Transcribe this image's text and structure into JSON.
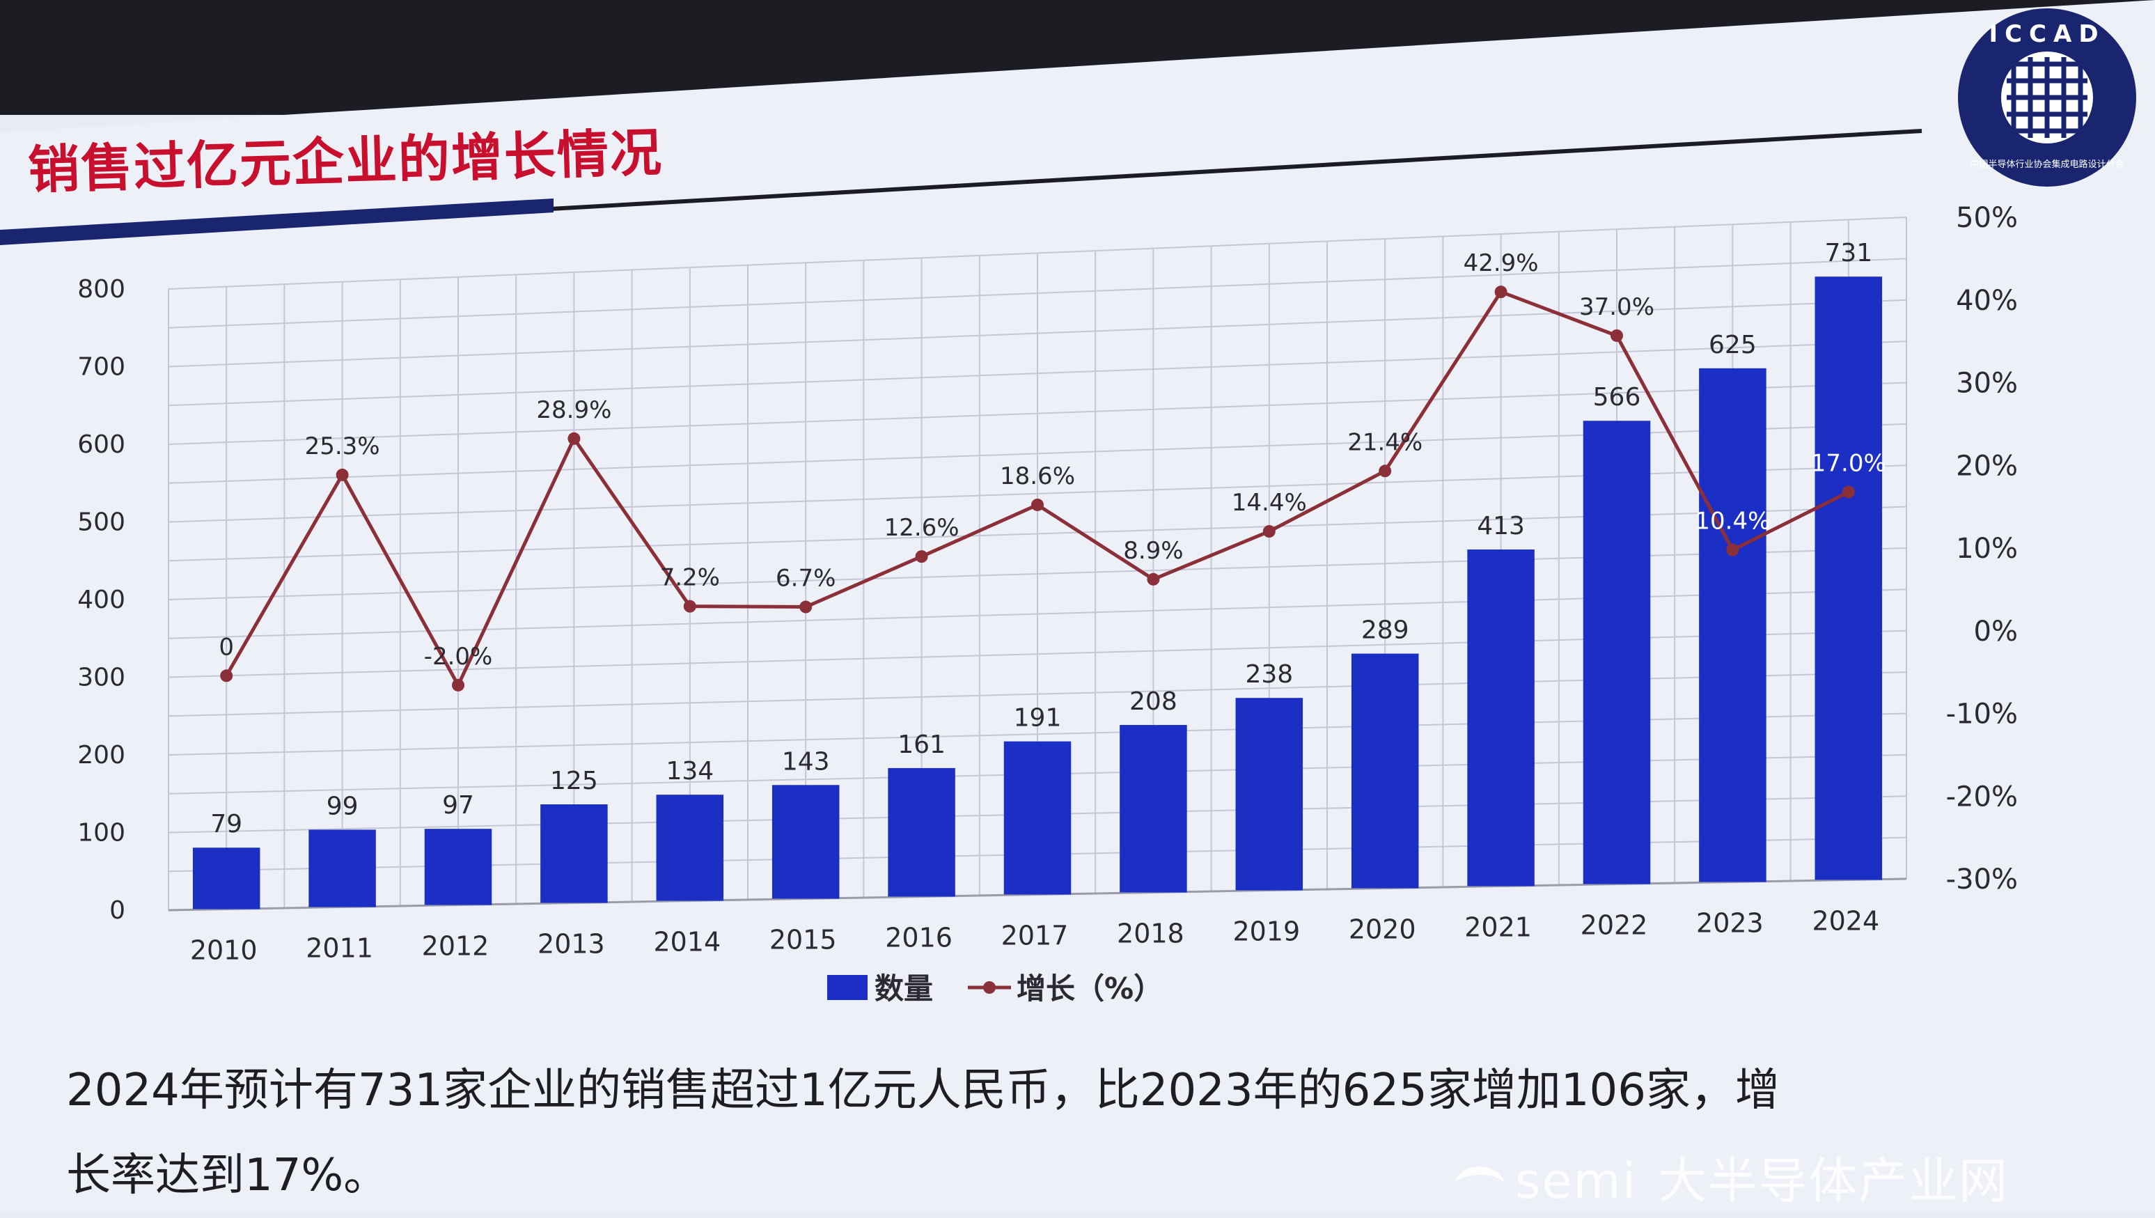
{
  "slide": {
    "title": "销售过亿元企业的增长情况",
    "description_line1": "2024年预计有731家企业的销售超过1亿元人民币，比2023年的625家增加106家，增",
    "description_line2": "长率达到17%。",
    "logo_text": "ICCAD",
    "logo_subtext": "中国半导体行业协会集成电路设计分会",
    "watermark_brand": "semi",
    "watermark_text": "大半导体产业网"
  },
  "colors": {
    "bar": "#1b2fc4",
    "line": "#8b2f38",
    "title": "#c8102e",
    "grid": "#c4c6d6",
    "accent_bar": "#1a2570"
  },
  "chart_data": {
    "type": "bar",
    "categories": [
      "2010",
      "2011",
      "2012",
      "2013",
      "2014",
      "2015",
      "2016",
      "2017",
      "2018",
      "2019",
      "2020",
      "2021",
      "2022",
      "2023",
      "2024"
    ],
    "series": [
      {
        "name": "数量",
        "type": "bar",
        "axis": "left",
        "values": [
          79,
          99,
          97,
          125,
          134,
          143,
          161,
          191,
          208,
          238,
          289,
          413,
          566,
          625,
          731
        ],
        "labels": [
          "79",
          "99",
          "97",
          "125",
          "134",
          "143",
          "161",
          "191",
          "208",
          "238",
          "289",
          "413",
          "566",
          "625",
          "731"
        ]
      },
      {
        "name": "增长（%）",
        "type": "line",
        "axis": "right",
        "values": [
          0,
          25.3,
          -2.0,
          28.9,
          7.2,
          6.7,
          12.6,
          18.6,
          8.9,
          14.4,
          21.4,
          42.9,
          37.0,
          10.4,
          17.0
        ],
        "labels": [
          "0",
          "25.3%",
          "-2.0%",
          "28.9%",
          "7.2%",
          "6.7%",
          "12.6%",
          "18.6%",
          "8.9%",
          "14.4%",
          "21.4%",
          "42.9%",
          "37.0%",
          "10.4%",
          "17.0%"
        ]
      }
    ],
    "y_left": {
      "min": 0,
      "max": 800,
      "ticks": [
        "0",
        "100",
        "200",
        "300",
        "400",
        "500",
        "600",
        "700",
        "800"
      ]
    },
    "y_right": {
      "min": -30,
      "max": 50,
      "ticks": [
        "-30%",
        "-20%",
        "-10%",
        "0%",
        "10%",
        "20%",
        "30%",
        "40%",
        "50%"
      ]
    },
    "grid": true,
    "legend": {
      "position": "bottom",
      "items": [
        "数量",
        "增长（%）"
      ]
    }
  }
}
